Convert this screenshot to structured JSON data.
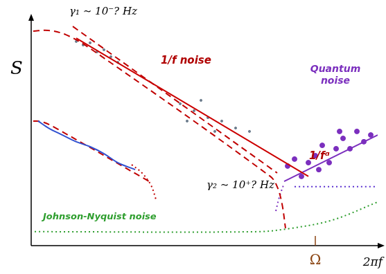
{
  "chart_data": {
    "type": "line",
    "x_label": "2πf",
    "y_label": "S",
    "xlim": [
      0,
      100
    ],
    "ylim": [
      0,
      100
    ],
    "xticks": [
      {
        "value": 82,
        "label": "Ω"
      }
    ],
    "tick_labels": "x",
    "grid": false,
    "legend": "none",
    "annotations": [
      "γ₁ ∼ 10⁻? Hz",
      "1/f noise",
      "1/fᵅ",
      "Quantum noise",
      "γ₂ ∼ 10⁺? Hz",
      "Johnson-Nyquist noise"
    ],
    "series": [
      {
        "type": "line",
        "color": "#c00000",
        "line_style": "dashed",
        "x": [
          0.6,
          5,
          10,
          17,
          69,
          71,
          72.4,
          73.4
        ],
        "values": [
          95.4,
          95.7,
          93.8,
          87.7,
          30.8,
          26.2,
          18.5,
          7.7
        ]
      },
      {
        "type": "line",
        "color": "#c00000",
        "line_style": "dashed",
        "x": [
          12,
          71
        ],
        "values": [
          97.5,
          32.3
        ]
      },
      {
        "type": "line",
        "color": "#cc0000",
        "line_style": "solid",
        "x": [
          13,
          80
        ],
        "values": [
          92.3,
          30.8
        ]
      },
      {
        "type": "scatter",
        "color": "#6f7f8f",
        "marker": "circle",
        "x": [
          13,
          15,
          17,
          19,
          21,
          23,
          25,
          43,
          47,
          51,
          55,
          59,
          63,
          49,
          53,
          45
        ],
        "values": [
          90.8,
          89.2,
          90.2,
          86.2,
          87.1,
          84,
          81.5,
          63.1,
          60,
          56.9,
          55.4,
          52.3,
          50.8,
          64.6,
          50.8,
          55.4
        ]
      },
      {
        "type": "line",
        "color": "#3050d0",
        "line_style": "solid",
        "x": [
          2,
          5,
          9,
          13,
          17,
          21,
          25,
          30
        ],
        "values": [
          55.4,
          52.3,
          49.2,
          46.2,
          44,
          40.9,
          36.9,
          33.8
        ]
      },
      {
        "type": "line",
        "color": "#c00000",
        "line_style": "dashed",
        "x": [
          0.6,
          3,
          6,
          34
        ],
        "values": [
          55.4,
          55.1,
          53.2,
          28.6
        ]
      },
      {
        "type": "line",
        "color": "#c00000",
        "line_style": "dotted",
        "x": [
          29,
          32,
          34.6,
          36
        ],
        "values": [
          36,
          32.3,
          26.8,
          20.6
        ]
      },
      {
        "type": "scatter",
        "color": "#7b2fbe",
        "marker": "circle",
        "x": [
          74,
          76,
          78,
          80,
          82,
          84,
          86,
          88,
          90,
          92,
          94,
          96,
          98,
          83,
          89
        ],
        "values": [
          35.4,
          38.5,
          30.8,
          36.9,
          40,
          44.6,
          36.9,
          43.1,
          47.7,
          43.1,
          50.8,
          46.2,
          49.2,
          33.8,
          50.8
        ]
      },
      {
        "type": "line",
        "color": "#7b2fbe",
        "line_style": "solid",
        "x": [
          73,
          100
        ],
        "values": [
          28.6,
          49.2
        ]
      },
      {
        "type": "line",
        "color": "#7b2fbe",
        "line_style": "dotted",
        "x": [
          70.6,
          71.6,
          73
        ],
        "values": [
          15.4,
          21.5,
          27.7
        ]
      },
      {
        "type": "line",
        "color": "#5a2fd0",
        "line_style": "dotted",
        "x": [
          76,
          100
        ],
        "values": [
          26.2,
          26.2
        ]
      },
      {
        "type": "line",
        "color": "#2e9e2e",
        "line_style": "dotted",
        "x": [
          1,
          65,
          75,
          87,
          100
        ],
        "values": [
          6.2,
          6.2,
          7.7,
          11.4,
          19.4
        ]
      }
    ]
  }
}
